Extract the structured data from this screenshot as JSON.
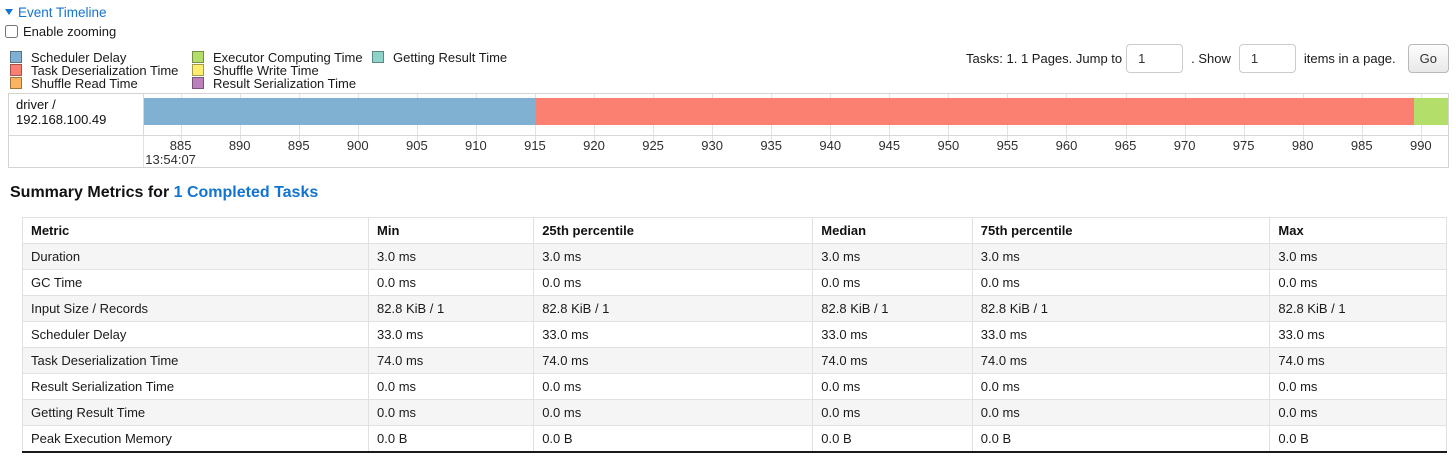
{
  "event_timeline": {
    "title": "Event Timeline",
    "enable_zooming_label": "Enable zooming",
    "legend_columns": [
      [
        {
          "label": "Scheduler Delay",
          "color": "#80B1D3"
        },
        {
          "label": "Task Deserialization Time",
          "color": "#FB8072"
        },
        {
          "label": "Shuffle Read Time",
          "color": "#FDB462"
        }
      ],
      [
        {
          "label": "Executor Computing Time",
          "color": "#B3DE69"
        },
        {
          "label": "Shuffle Write Time",
          "color": "#FFED6F"
        },
        {
          "label": "Result Serialization Time",
          "color": "#BC80BD"
        }
      ],
      [
        {
          "label": "Getting Result Time",
          "color": "#8DD3C7"
        }
      ]
    ]
  },
  "pagination": {
    "tasks_label": "Tasks: 1. 1 Pages. Jump to",
    "jump_value": "1",
    "show_label": ". Show",
    "show_value": "1",
    "items_label": "items in a page.",
    "go_label": "Go"
  },
  "chart_data": {
    "type": "timeline",
    "row_label": "driver / 192.168.100.49",
    "axis_range": [
      881.9,
      992.3
    ],
    "ticks": [
      885,
      890,
      895,
      900,
      905,
      910,
      915,
      920,
      925,
      930,
      935,
      940,
      945,
      950,
      955,
      960,
      965,
      970,
      975,
      980,
      985,
      990
    ],
    "time_sublabel": {
      "tick": 885,
      "text": "13:54:07"
    },
    "segments": [
      {
        "name": "Scheduler Delay",
        "start": 881.9,
        "end": 915.1,
        "color": "#80B1D3"
      },
      {
        "name": "Task Deserialization Time",
        "start": 915.1,
        "end": 989.4,
        "color": "#FB8072"
      },
      {
        "name": "Executor Computing Time",
        "start": 989.4,
        "end": 992.3,
        "color": "#B3DE69"
      }
    ]
  },
  "summary": {
    "heading_prefix": "Summary Metrics for ",
    "heading_link": "1 Completed Tasks",
    "table": {
      "columns": [
        "Metric",
        "Min",
        "25th percentile",
        "Median",
        "75th percentile",
        "Max"
      ],
      "rows": [
        {
          "metric": "Duration",
          "values": [
            "3.0 ms",
            "3.0 ms",
            "3.0 ms",
            "3.0 ms",
            "3.0 ms"
          ],
          "highlighted": false
        },
        {
          "metric": "GC Time",
          "values": [
            "0.0 ms",
            "0.0 ms",
            "0.0 ms",
            "0.0 ms",
            "0.0 ms"
          ],
          "highlighted": true
        },
        {
          "metric": "Input Size / Records",
          "values": [
            "82.8 KiB / 1",
            "82.8 KiB / 1",
            "82.8 KiB / 1",
            "82.8 KiB / 1",
            "82.8 KiB / 1"
          ],
          "highlighted": false
        },
        {
          "metric": "Scheduler Delay",
          "values": [
            "33.0 ms",
            "33.0 ms",
            "33.0 ms",
            "33.0 ms",
            "33.0 ms"
          ],
          "highlighted": false
        },
        {
          "metric": "Task Deserialization Time",
          "values": [
            "74.0 ms",
            "74.0 ms",
            "74.0 ms",
            "74.0 ms",
            "74.0 ms"
          ],
          "highlighted": false
        },
        {
          "metric": "Result Serialization Time",
          "values": [
            "0.0 ms",
            "0.0 ms",
            "0.0 ms",
            "0.0 ms",
            "0.0 ms"
          ],
          "highlighted": false
        },
        {
          "metric": "Getting Result Time",
          "values": [
            "0.0 ms",
            "0.0 ms",
            "0.0 ms",
            "0.0 ms",
            "0.0 ms"
          ],
          "highlighted": false
        },
        {
          "metric": "Peak Execution Memory",
          "values": [
            "0.0 B",
            "0.0 B",
            "0.0 B",
            "0.0 B",
            "0.0 B"
          ],
          "highlighted": false
        }
      ]
    }
  },
  "colors": {
    "link_blue": "#1374cf",
    "highlight_green": "#5b9e31",
    "stripe_gray": "#f5f5f5"
  }
}
